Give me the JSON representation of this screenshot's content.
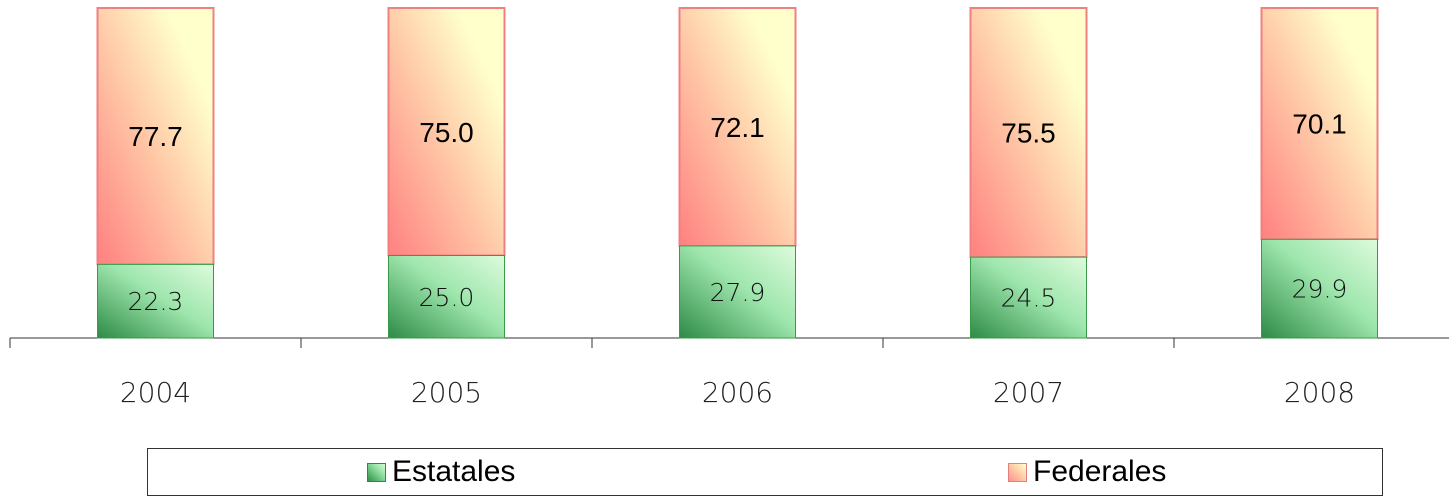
{
  "chart_data": {
    "type": "bar",
    "stacked": true,
    "percent_stacked": true,
    "categories": [
      "2004",
      "2005",
      "2006",
      "2007",
      "2008"
    ],
    "series": [
      {
        "name": "Estatales",
        "values": [
          22.3,
          25.0,
          27.9,
          24.5,
          29.9
        ],
        "labels": [
          "22.3",
          "25.0",
          "27.9",
          "24.5",
          "29.9"
        ]
      },
      {
        "name": "Federales",
        "values": [
          77.7,
          75.0,
          72.1,
          75.5,
          70.1
        ],
        "labels": [
          "77.7",
          "75.0",
          "72.1",
          "75.5",
          "70.1"
        ]
      }
    ],
    "ylim": [
      0,
      100
    ],
    "grid": false,
    "legend_position": "bottom",
    "colors": {
      "estatales_dark": "#2e8b46",
      "estatales_light": "#d6fad6",
      "federales_dark": "#ff8a8a",
      "federales_light": "#ffffcc",
      "federales_border": "#f08080",
      "estatales_border": "#3a9a4a"
    }
  },
  "legend": {
    "items": [
      {
        "label": "Estatales",
        "swatch": "green-gradient"
      },
      {
        "label": "Federales",
        "swatch": "red-yellow-gradient"
      }
    ]
  }
}
